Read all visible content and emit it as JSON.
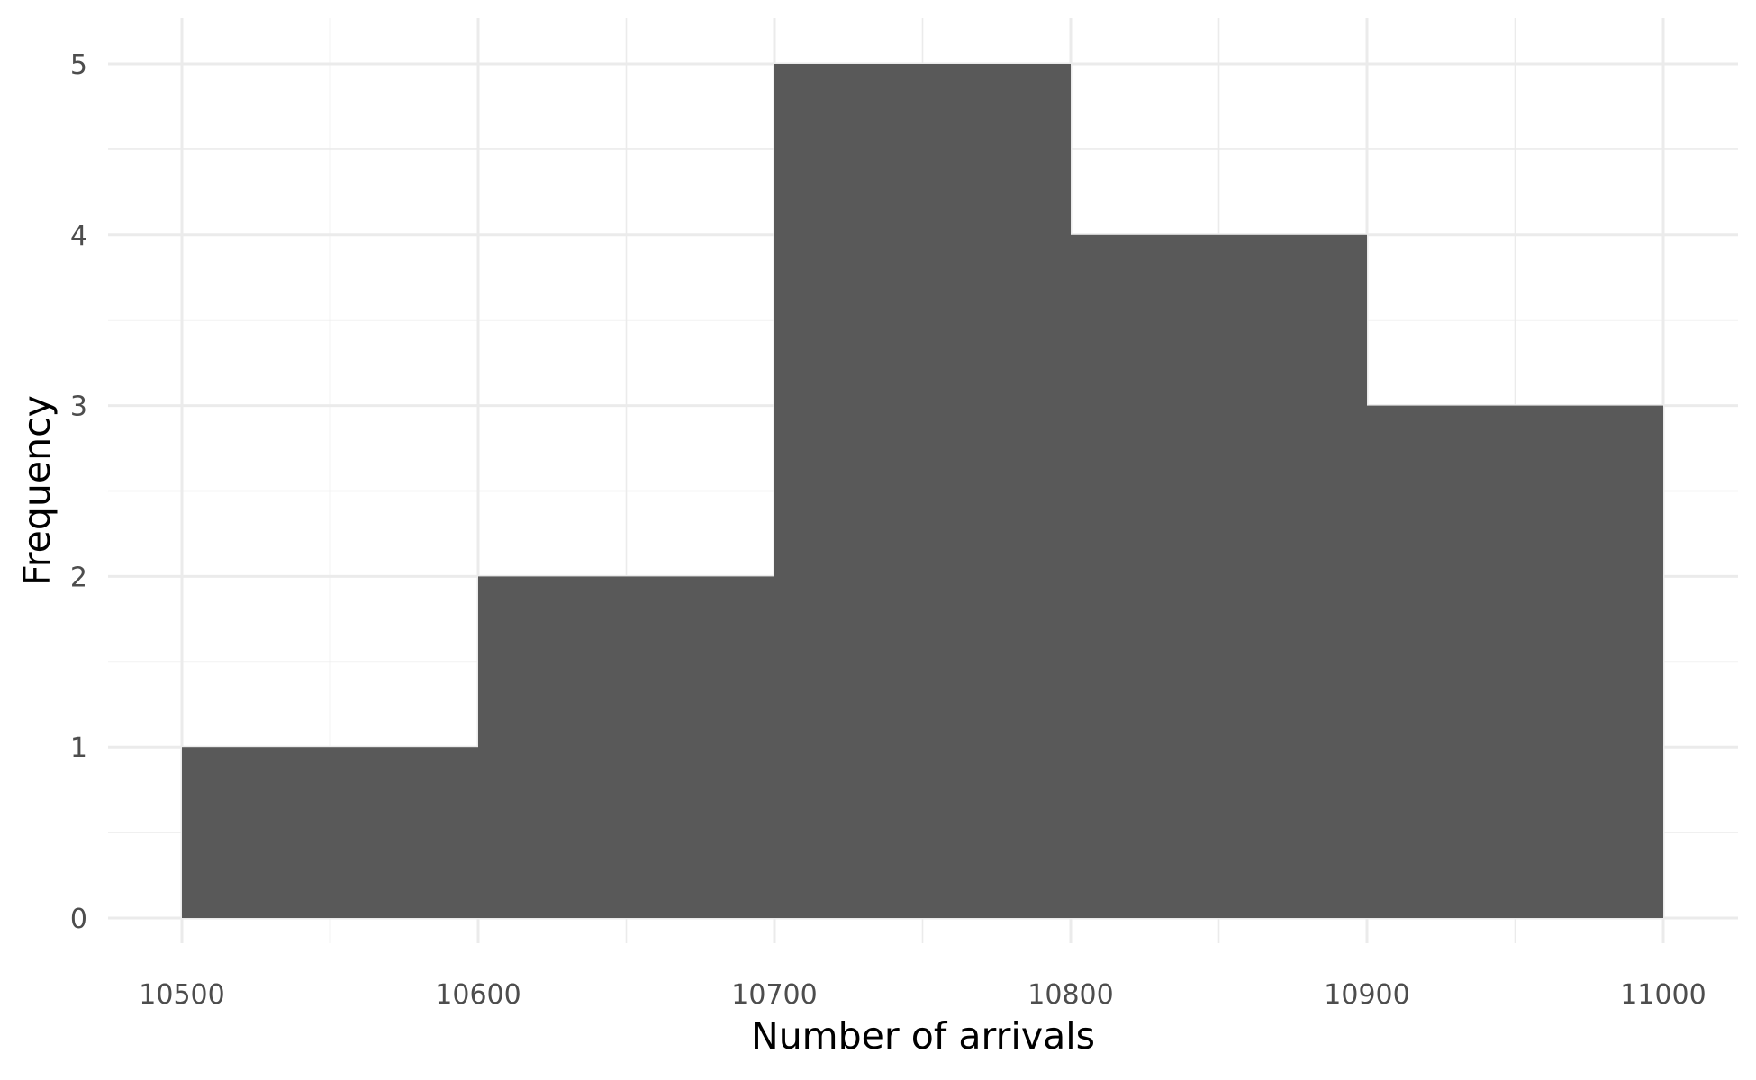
{
  "chart_data": {
    "type": "bar",
    "subtype": "histogram",
    "title": "",
    "xlabel": "Number of arrivals",
    "ylabel": "Frequency",
    "bins": [
      {
        "start": 10500,
        "end": 10600,
        "count": 1
      },
      {
        "start": 10600,
        "end": 10700,
        "count": 2
      },
      {
        "start": 10700,
        "end": 10800,
        "count": 5
      },
      {
        "start": 10800,
        "end": 10900,
        "count": 4
      },
      {
        "start": 10900,
        "end": 11000,
        "count": 3
      }
    ],
    "categories": [
      "10500-10600",
      "10600-10700",
      "10700-10800",
      "10800-10900",
      "10900-11000"
    ],
    "values": [
      1,
      2,
      5,
      4,
      3
    ],
    "xlim": [
      10475,
      11025
    ],
    "ylim": [
      0,
      5.25
    ],
    "x_ticks": [
      10500,
      10600,
      10700,
      10800,
      10900,
      11000
    ],
    "x_minor_ticks": [
      10550,
      10650,
      10750,
      10850,
      10950
    ],
    "y_ticks": [
      0,
      1,
      2,
      3,
      4,
      5
    ],
    "y_minor_ticks": [
      0.5,
      1.5,
      2.5,
      3.5,
      4.5
    ],
    "x_tick_labels": [
      "10500",
      "10600",
      "10700",
      "10800",
      "10900",
      "11000"
    ],
    "y_tick_labels": [
      "0",
      "1",
      "2",
      "3",
      "4",
      "5"
    ],
    "grid": true,
    "legend": "none",
    "colors": {
      "bar_fill": "#595959",
      "grid": "#ebebeb",
      "tick_text": "#4d4d4d",
      "title_text": "#000000",
      "background": "#ffffff"
    }
  }
}
